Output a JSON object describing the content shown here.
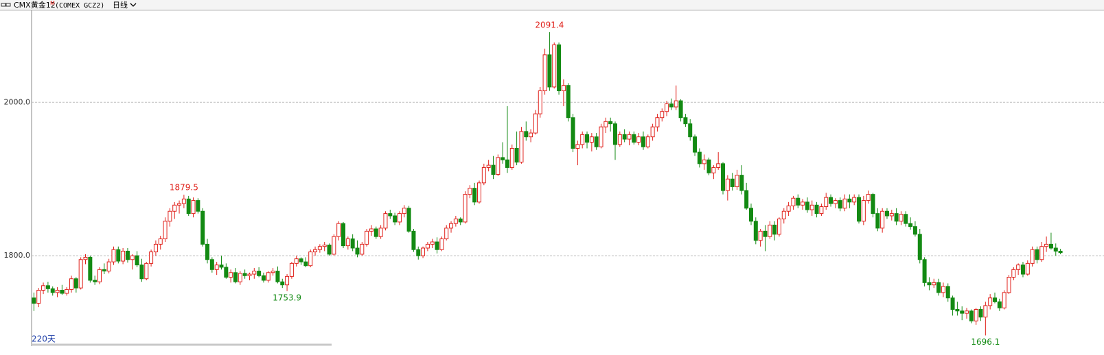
{
  "chart_data": {
    "type": "candlestick",
    "title": "CMX黄金12",
    "title_sup": "M",
    "subtitle": "(COMEX GCZ2)",
    "period": "日线",
    "count_label": "220天",
    "up_color": "#e0201a",
    "down_color": "#138a13",
    "grid": true,
    "ylim": [
      1684,
      2120
    ],
    "yticks": [
      {
        "value": 1800,
        "label": "1800.0"
      },
      {
        "value": 2000,
        "label": "2000.0"
      }
    ],
    "candles": [
      [
        1745,
        1752,
        1728,
        1738
      ],
      [
        1738,
        1758,
        1733,
        1755
      ],
      [
        1755,
        1765,
        1750,
        1761
      ],
      [
        1761,
        1766,
        1752,
        1757
      ],
      [
        1757,
        1760,
        1748,
        1752
      ],
      [
        1752,
        1759,
        1746,
        1755
      ],
      [
        1755,
        1762,
        1749,
        1751
      ],
      [
        1751,
        1759,
        1748,
        1756
      ],
      [
        1756,
        1774,
        1752,
        1770
      ],
      [
        1770,
        1772,
        1752,
        1758
      ],
      [
        1758,
        1798,
        1756,
        1795
      ],
      [
        1795,
        1802,
        1789,
        1798
      ],
      [
        1798,
        1800,
        1765,
        1768
      ],
      [
        1768,
        1774,
        1762,
        1766
      ],
      [
        1766,
        1785,
        1763,
        1782
      ],
      [
        1782,
        1790,
        1776,
        1780
      ],
      [
        1780,
        1796,
        1777,
        1792
      ],
      [
        1792,
        1812,
        1788,
        1808
      ],
      [
        1808,
        1812,
        1790,
        1793
      ],
      [
        1793,
        1810,
        1789,
        1806
      ],
      [
        1806,
        1810,
        1791,
        1795
      ],
      [
        1795,
        1802,
        1782,
        1800
      ],
      [
        1800,
        1806,
        1785,
        1788
      ],
      [
        1788,
        1796,
        1766,
        1770
      ],
      [
        1770,
        1792,
        1768,
        1790
      ],
      [
        1790,
        1808,
        1786,
        1805
      ],
      [
        1805,
        1820,
        1800,
        1815
      ],
      [
        1815,
        1826,
        1808,
        1822
      ],
      [
        1822,
        1850,
        1818,
        1845
      ],
      [
        1845,
        1862,
        1838,
        1858
      ],
      [
        1858,
        1870,
        1848,
        1866
      ],
      [
        1866,
        1872,
        1855,
        1868
      ],
      [
        1868,
        1879.5,
        1862,
        1874
      ],
      [
        1874,
        1878,
        1852,
        1855
      ],
      [
        1855,
        1876,
        1850,
        1872
      ],
      [
        1872,
        1875,
        1855,
        1858
      ],
      [
        1858,
        1862,
        1812,
        1815
      ],
      [
        1815,
        1822,
        1790,
        1795
      ],
      [
        1795,
        1798,
        1778,
        1782
      ],
      [
        1782,
        1792,
        1775,
        1788
      ],
      [
        1788,
        1800,
        1782,
        1785
      ],
      [
        1785,
        1790,
        1770,
        1772
      ],
      [
        1772,
        1782,
        1765,
        1778
      ],
      [
        1778,
        1784,
        1764,
        1766
      ],
      [
        1766,
        1780,
        1762,
        1777
      ],
      [
        1777,
        1782,
        1770,
        1774
      ],
      [
        1774,
        1778,
        1768,
        1776
      ],
      [
        1776,
        1784,
        1770,
        1780
      ],
      [
        1780,
        1785,
        1772,
        1774
      ],
      [
        1774,
        1778,
        1765,
        1768
      ],
      [
        1768,
        1780,
        1765,
        1778
      ],
      [
        1778,
        1784,
        1774,
        1780
      ],
      [
        1780,
        1786,
        1764,
        1766
      ],
      [
        1766,
        1770,
        1758,
        1762
      ],
      [
        1762,
        1776,
        1753.9,
        1773
      ],
      [
        1773,
        1792,
        1770,
        1790
      ],
      [
        1790,
        1800,
        1786,
        1796
      ],
      [
        1796,
        1798,
        1788,
        1792
      ],
      [
        1792,
        1798,
        1785,
        1787
      ],
      [
        1787,
        1808,
        1785,
        1805
      ],
      [
        1805,
        1812,
        1800,
        1808
      ],
      [
        1808,
        1815,
        1804,
        1812
      ],
      [
        1812,
        1818,
        1806,
        1814
      ],
      [
        1814,
        1816,
        1800,
        1802
      ],
      [
        1802,
        1828,
        1800,
        1825
      ],
      [
        1825,
        1845,
        1820,
        1842
      ],
      [
        1842,
        1844,
        1810,
        1813
      ],
      [
        1813,
        1825,
        1808,
        1822
      ],
      [
        1822,
        1828,
        1806,
        1810
      ],
      [
        1810,
        1820,
        1798,
        1802
      ],
      [
        1802,
        1818,
        1800,
        1815
      ],
      [
        1815,
        1835,
        1812,
        1832
      ],
      [
        1832,
        1840,
        1826,
        1835
      ],
      [
        1835,
        1838,
        1822,
        1825
      ],
      [
        1825,
        1840,
        1822,
        1836
      ],
      [
        1836,
        1858,
        1833,
        1855
      ],
      [
        1855,
        1860,
        1848,
        1852
      ],
      [
        1852,
        1856,
        1840,
        1844
      ],
      [
        1844,
        1858,
        1840,
        1855
      ],
      [
        1855,
        1866,
        1850,
        1862
      ],
      [
        1862,
        1865,
        1830,
        1832
      ],
      [
        1832,
        1835,
        1805,
        1808
      ],
      [
        1808,
        1812,
        1795,
        1800
      ],
      [
        1800,
        1812,
        1797,
        1810
      ],
      [
        1810,
        1818,
        1806,
        1815
      ],
      [
        1815,
        1822,
        1810,
        1818
      ],
      [
        1818,
        1824,
        1803,
        1808
      ],
      [
        1808,
        1825,
        1806,
        1822
      ],
      [
        1822,
        1840,
        1820,
        1836
      ],
      [
        1836,
        1845,
        1830,
        1842
      ],
      [
        1842,
        1852,
        1838,
        1848
      ],
      [
        1848,
        1850,
        1840,
        1844
      ],
      [
        1844,
        1884,
        1842,
        1880
      ],
      [
        1880,
        1892,
        1875,
        1888
      ],
      [
        1888,
        1895,
        1866,
        1870
      ],
      [
        1870,
        1898,
        1868,
        1895
      ],
      [
        1895,
        1920,
        1892,
        1915
      ],
      [
        1915,
        1925,
        1910,
        1918
      ],
      [
        1918,
        1930,
        1900,
        1906
      ],
      [
        1906,
        1932,
        1904,
        1928
      ],
      [
        1928,
        1948,
        1920,
        1925
      ],
      [
        1925,
        1995,
        1908,
        1915
      ],
      [
        1915,
        1945,
        1912,
        1940
      ],
      [
        1940,
        1962,
        1918,
        1922
      ],
      [
        1922,
        1968,
        1920,
        1962
      ],
      [
        1962,
        1975,
        1950,
        1955
      ],
      [
        1955,
        1965,
        1948,
        1960
      ],
      [
        1960,
        1990,
        1958,
        1985
      ],
      [
        1985,
        2020,
        1980,
        2015
      ],
      [
        2015,
        2070,
        2010,
        2062
      ],
      [
        2062,
        2091.4,
        2015,
        2020
      ],
      [
        2020,
        2078,
        2018,
        2075
      ],
      [
        2075,
        2078,
        2010,
        2015
      ],
      [
        2015,
        2030,
        1995,
        2022
      ],
      [
        2022,
        2025,
        1975,
        1980
      ],
      [
        1980,
        1985,
        1935,
        1940
      ],
      [
        1940,
        1950,
        1918,
        1945
      ],
      [
        1945,
        1962,
        1940,
        1958
      ],
      [
        1958,
        1962,
        1940,
        1948
      ],
      [
        1948,
        1960,
        1936,
        1955
      ],
      [
        1955,
        1960,
        1938,
        1942
      ],
      [
        1942,
        1972,
        1940,
        1968
      ],
      [
        1968,
        1980,
        1960,
        1975
      ],
      [
        1975,
        1980,
        1962,
        1972
      ],
      [
        1972,
        1975,
        1925,
        1945
      ],
      [
        1945,
        1962,
        1942,
        1958
      ],
      [
        1958,
        1965,
        1948,
        1952
      ],
      [
        1952,
        1962,
        1944,
        1958
      ],
      [
        1958,
        1962,
        1945,
        1948
      ],
      [
        1948,
        1960,
        1944,
        1955
      ],
      [
        1955,
        1962,
        1938,
        1942
      ],
      [
        1942,
        1958,
        1940,
        1955
      ],
      [
        1955,
        1972,
        1950,
        1968
      ],
      [
        1968,
        1985,
        1962,
        1980
      ],
      [
        1980,
        1992,
        1975,
        1988
      ],
      [
        1988,
        2002,
        1982,
        1998
      ],
      [
        1998,
        2005,
        1990,
        1994
      ],
      [
        1994,
        2022,
        1990,
        2002
      ],
      [
        2002,
        2004,
        1975,
        1980
      ],
      [
        1980,
        1985,
        1968,
        1972
      ],
      [
        1972,
        1978,
        1950,
        1955
      ],
      [
        1955,
        1958,
        1930,
        1935
      ],
      [
        1935,
        1940,
        1915,
        1920
      ],
      [
        1920,
        1932,
        1912,
        1925
      ],
      [
        1925,
        1928,
        1905,
        1908
      ],
      [
        1908,
        1918,
        1900,
        1915
      ],
      [
        1915,
        1935,
        1912,
        1920
      ],
      [
        1920,
        1922,
        1880,
        1885
      ],
      [
        1885,
        1905,
        1872,
        1900
      ],
      [
        1900,
        1908,
        1885,
        1890
      ],
      [
        1890,
        1912,
        1886,
        1905
      ],
      [
        1905,
        1918,
        1880,
        1885
      ],
      [
        1885,
        1895,
        1860,
        1862
      ],
      [
        1862,
        1868,
        1840,
        1845
      ],
      [
        1845,
        1850,
        1815,
        1820
      ],
      [
        1820,
        1835,
        1812,
        1832
      ],
      [
        1832,
        1840,
        1806,
        1825
      ],
      [
        1825,
        1845,
        1822,
        1840
      ],
      [
        1840,
        1845,
        1820,
        1828
      ],
      [
        1828,
        1850,
        1825,
        1848
      ],
      [
        1848,
        1862,
        1842,
        1858
      ],
      [
        1858,
        1870,
        1852,
        1865
      ],
      [
        1865,
        1878,
        1860,
        1875
      ],
      [
        1875,
        1880,
        1862,
        1866
      ],
      [
        1866,
        1874,
        1860,
        1870
      ],
      [
        1870,
        1876,
        1856,
        1860
      ],
      [
        1860,
        1872,
        1852,
        1866
      ],
      [
        1866,
        1870,
        1850,
        1855
      ],
      [
        1855,
        1868,
        1852,
        1864
      ],
      [
        1864,
        1882,
        1860,
        1876
      ],
      [
        1876,
        1880,
        1864,
        1868
      ],
      [
        1868,
        1875,
        1862,
        1872
      ],
      [
        1872,
        1876,
        1858,
        1862
      ],
      [
        1862,
        1880,
        1858,
        1874
      ],
      [
        1874,
        1880,
        1862,
        1870
      ],
      [
        1870,
        1880,
        1866,
        1876
      ],
      [
        1876,
        1880,
        1842,
        1845
      ],
      [
        1845,
        1878,
        1840,
        1872
      ],
      [
        1872,
        1885,
        1868,
        1880
      ],
      [
        1880,
        1882,
        1850,
        1855
      ],
      [
        1855,
        1862,
        1832,
        1836
      ],
      [
        1836,
        1862,
        1830,
        1858
      ],
      [
        1858,
        1862,
        1848,
        1852
      ],
      [
        1852,
        1860,
        1846,
        1855
      ],
      [
        1855,
        1862,
        1840,
        1845
      ],
      [
        1845,
        1858,
        1840,
        1854
      ],
      [
        1854,
        1858,
        1838,
        1842
      ],
      [
        1842,
        1850,
        1834,
        1838
      ],
      [
        1838,
        1845,
        1825,
        1828
      ],
      [
        1828,
        1835,
        1790,
        1795
      ],
      [
        1795,
        1798,
        1760,
        1765
      ],
      [
        1765,
        1772,
        1755,
        1762
      ],
      [
        1762,
        1770,
        1758,
        1765
      ],
      [
        1765,
        1770,
        1748,
        1752
      ],
      [
        1752,
        1765,
        1746,
        1760
      ],
      [
        1760,
        1764,
        1740,
        1745
      ],
      [
        1745,
        1748,
        1722,
        1730
      ],
      [
        1730,
        1740,
        1722,
        1728
      ],
      [
        1728,
        1734,
        1716,
        1725
      ],
      [
        1725,
        1732,
        1718,
        1728
      ],
      [
        1728,
        1730,
        1712,
        1715
      ],
      [
        1715,
        1732,
        1710,
        1730
      ],
      [
        1730,
        1734,
        1715,
        1720
      ],
      [
        1720,
        1740,
        1696.1,
        1735
      ],
      [
        1735,
        1750,
        1730,
        1745
      ],
      [
        1745,
        1752,
        1738,
        1740
      ],
      [
        1740,
        1744,
        1728,
        1732
      ],
      [
        1732,
        1755,
        1730,
        1752
      ],
      [
        1752,
        1775,
        1750,
        1772
      ],
      [
        1772,
        1785,
        1768,
        1782
      ],
      [
        1782,
        1790,
        1775,
        1788
      ],
      [
        1788,
        1792,
        1772,
        1776
      ],
      [
        1776,
        1794,
        1774,
        1790
      ],
      [
        1790,
        1812,
        1786,
        1808
      ],
      [
        1808,
        1812,
        1790,
        1795
      ],
      [
        1795,
        1818,
        1792,
        1812
      ],
      [
        1812,
        1825,
        1805,
        1815
      ],
      [
        1815,
        1830,
        1808,
        1810
      ],
      [
        1810,
        1816,
        1800,
        1806
      ],
      [
        1806,
        1809,
        1802,
        1804
      ]
    ]
  }
}
